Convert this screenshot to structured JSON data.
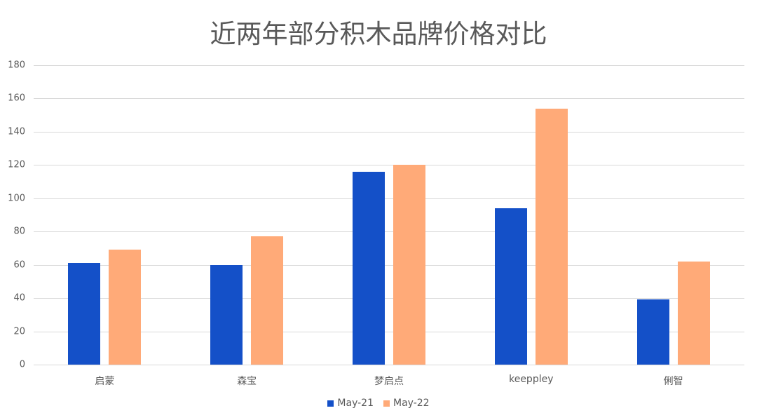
{
  "chart_data": {
    "type": "bar",
    "title": "近两年部分积木品牌价格对比",
    "xlabel": "",
    "ylabel": "",
    "ylim": [
      0,
      180
    ],
    "yticks": [
      0,
      20,
      40,
      60,
      80,
      100,
      120,
      140,
      160,
      180
    ],
    "grid": true,
    "legend_position": "bottom",
    "categories": [
      "启蒙",
      "森宝",
      "梦启点",
      "keeppley",
      "俐智"
    ],
    "series": [
      {
        "name": "May-21",
        "color": "#1450C8",
        "values": [
          61,
          60,
          116,
          94,
          39
        ]
      },
      {
        "name": "May-22",
        "color": "#FFAA78",
        "values": [
          69,
          77,
          120,
          154,
          62
        ]
      }
    ]
  },
  "labels": {
    "title": "近两年部分积木品牌价格对比",
    "yticks": [
      "0",
      "20",
      "40",
      "60",
      "80",
      "100",
      "120",
      "140",
      "160",
      "180"
    ],
    "categories": [
      "启蒙",
      "森宝",
      "梦启点",
      "keeppley",
      "俐智"
    ],
    "legend": [
      "May-21",
      "May-22"
    ]
  }
}
